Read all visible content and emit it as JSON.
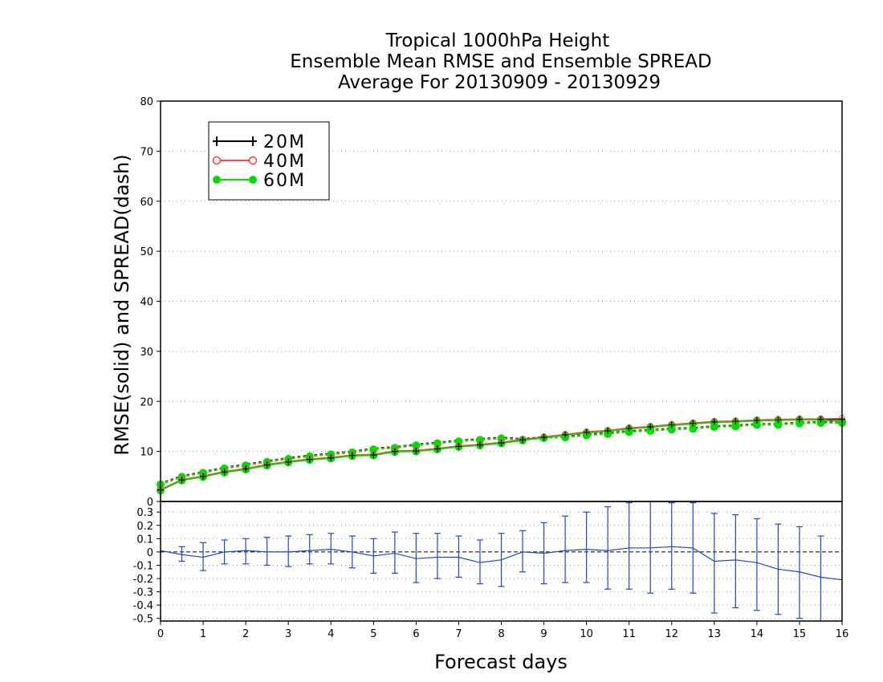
{
  "chart_data": [
    {
      "type": "line",
      "title": [
        "Tropical 1000hPa Height",
        "Ensemble Mean RMSE and Ensemble SPREAD",
        "Average For 20130909 - 20130929"
      ],
      "xlabel": "Forecast days",
      "ylabel": "RMSE(solid) and SPREAD(dash)",
      "xlim": [
        0,
        16
      ],
      "ylim": [
        0,
        80
      ],
      "x_ticks": [
        0,
        1,
        2,
        3,
        4,
        5,
        6,
        7,
        8,
        9,
        10,
        11,
        12,
        13,
        14,
        15,
        16
      ],
      "y_ticks": [
        0,
        10,
        20,
        30,
        40,
        50,
        60,
        70,
        80
      ],
      "grid": "horizontal dotted",
      "legend": "top-left",
      "x": [
        0,
        0.5,
        1,
        1.5,
        2,
        2.5,
        3,
        3.5,
        4,
        4.5,
        5,
        5.5,
        6,
        6.5,
        7,
        7.5,
        8,
        8.5,
        9,
        9.5,
        10,
        10.5,
        11,
        11.5,
        12,
        12.5,
        13,
        13.5,
        14,
        14.5,
        15,
        15.5,
        16
      ],
      "series": [
        {
          "name": "20M",
          "color": "#000000",
          "marker": "plus",
          "style": "solid",
          "values": [
            2.3,
            4.3,
            5.0,
            5.9,
            6.5,
            7.3,
            7.9,
            8.4,
            8.7,
            9.2,
            9.3,
            10.0,
            10.1,
            10.5,
            11.0,
            11.3,
            11.7,
            12.3,
            12.8,
            13.3,
            13.8,
            14.1,
            14.6,
            14.9,
            15.3,
            15.6,
            15.9,
            16.0,
            16.2,
            16.3,
            16.4,
            16.4,
            16.4
          ]
        },
        {
          "name": "40M",
          "color": "#ff4040",
          "marker": "open-circle",
          "style": "solid",
          "values": [
            2.4,
            4.4,
            5.1,
            6.0,
            6.6,
            7.4,
            8.0,
            8.5,
            8.8,
            9.3,
            9.4,
            10.1,
            10.2,
            10.6,
            11.1,
            11.4,
            11.8,
            12.4,
            12.9,
            13.4,
            13.9,
            14.2,
            14.7,
            15.0,
            15.4,
            15.7,
            16.0,
            16.1,
            16.3,
            16.4,
            16.5,
            16.5,
            16.6
          ]
        },
        {
          "name": "60M",
          "color": "#00dd00",
          "marker": "filled-circle",
          "style": "solid",
          "values": [
            2.2,
            4.2,
            4.9,
            5.8,
            6.4,
            7.2,
            7.8,
            8.3,
            8.6,
            9.1,
            9.2,
            9.9,
            10.0,
            10.4,
            10.9,
            11.2,
            11.6,
            12.2,
            12.7,
            13.2,
            13.7,
            14.0,
            14.5,
            14.8,
            15.2,
            15.5,
            15.8,
            15.9,
            16.1,
            16.2,
            16.3,
            16.3,
            16.0
          ]
        }
      ],
      "spread_series": [
        {
          "name": "20M",
          "color": "#000000",
          "style": "dotted",
          "values": [
            3.6,
            5.1,
            5.9,
            6.8,
            7.4,
            8.1,
            8.7,
            9.2,
            9.6,
            10.0,
            10.6,
            10.9,
            11.4,
            11.8,
            12.2,
            12.5,
            12.8,
            12.5,
            12.9,
            13.0,
            13.4,
            13.7,
            14.1,
            14.3,
            14.6,
            14.7,
            15.1,
            15.2,
            15.5,
            15.5,
            15.8,
            15.9,
            15.9
          ]
        },
        {
          "name": "40M",
          "color": "#ff4040",
          "style": "dotted",
          "values": [
            3.5,
            5.0,
            5.8,
            6.7,
            7.3,
            8.0,
            8.6,
            9.1,
            9.5,
            9.9,
            10.5,
            10.8,
            11.3,
            11.7,
            12.1,
            12.4,
            12.7,
            12.4,
            12.8,
            12.9,
            13.3,
            13.6,
            14.0,
            14.2,
            14.5,
            14.6,
            15.0,
            15.1,
            15.4,
            15.4,
            15.7,
            15.8,
            15.8
          ]
        },
        {
          "name": "60M",
          "color": "#00dd00",
          "style": "dotted",
          "values": [
            3.4,
            4.9,
            5.7,
            6.6,
            7.2,
            7.9,
            8.5,
            9.0,
            9.4,
            9.8,
            10.4,
            10.7,
            11.2,
            11.6,
            12.0,
            12.3,
            12.6,
            12.3,
            12.7,
            12.8,
            13.2,
            13.5,
            13.9,
            14.1,
            14.4,
            14.5,
            14.9,
            15.0,
            15.3,
            15.3,
            15.6,
            15.7,
            15.7
          ]
        }
      ]
    },
    {
      "type": "line",
      "xlabel": "Forecast days",
      "xlim": [
        0,
        16
      ],
      "ylim": [
        -0.52,
        0.38
      ],
      "x_ticks": [
        0,
        1,
        2,
        3,
        4,
        5,
        6,
        7,
        8,
        9,
        10,
        11,
        12,
        13,
        14,
        15,
        16
      ],
      "y_ticks": [
        0.3,
        0.2,
        0.1,
        0,
        -0.1,
        -0.2,
        -0.3,
        -0.4,
        -0.5
      ],
      "y_tick_labels": [
        "0.3",
        "0.2",
        "0.1",
        "0",
        "-0.1",
        "-0.2",
        "-0.3",
        "-0.4",
        "-0.5"
      ],
      "grid": "horizontal dotted",
      "reference_line": 0,
      "series": [
        {
          "color": "#2244cc",
          "style": "solid",
          "error_bars": true,
          "x": [
            0,
            0.5,
            1,
            1.5,
            2,
            2.5,
            3,
            3.5,
            4,
            4.5,
            5,
            5.5,
            6,
            6.5,
            7,
            7.5,
            8,
            8.5,
            9,
            9.5,
            10,
            10.5,
            11,
            11.5,
            12,
            12.5,
            13,
            13.5,
            14,
            14.5,
            15,
            15.5,
            16
          ],
          "values": [
            0.01,
            -0.02,
            -0.04,
            0.0,
            0.01,
            0.0,
            0.0,
            0.01,
            0.02,
            0.0,
            -0.03,
            -0.01,
            -0.05,
            -0.04,
            -0.04,
            -0.08,
            -0.06,
            0.0,
            -0.01,
            0.01,
            0.02,
            0.01,
            0.03,
            0.03,
            0.04,
            0.03,
            -0.07,
            -0.06,
            -0.08,
            -0.13,
            -0.15,
            -0.19,
            -0.21
          ],
          "upper": [
            null,
            0.04,
            0.07,
            0.09,
            0.1,
            0.11,
            0.12,
            0.13,
            0.14,
            0.12,
            0.1,
            0.15,
            0.14,
            0.14,
            0.12,
            0.09,
            0.14,
            0.16,
            0.22,
            0.27,
            0.3,
            0.34,
            0.37,
            0.38,
            0.37,
            0.37,
            0.29,
            0.28,
            0.25,
            0.21,
            0.19,
            0.12,
            null
          ],
          "lower": [
            null,
            -0.07,
            -0.14,
            -0.09,
            -0.09,
            -0.1,
            -0.11,
            -0.09,
            -0.09,
            -0.12,
            -0.16,
            -0.16,
            -0.23,
            -0.2,
            -0.19,
            -0.24,
            -0.26,
            -0.15,
            -0.24,
            -0.23,
            -0.23,
            -0.28,
            -0.28,
            -0.31,
            -0.28,
            -0.31,
            -0.46,
            -0.42,
            -0.44,
            -0.47,
            -0.5,
            -0.52,
            null
          ]
        }
      ]
    }
  ],
  "legend": {
    "items": [
      {
        "label": "20M",
        "color": "#000000",
        "marker": "plus"
      },
      {
        "label": "40M",
        "color": "#ff4040",
        "marker": "open-circle"
      },
      {
        "label": "60M",
        "color": "#00dd00",
        "marker": "filled-circle"
      }
    ]
  }
}
